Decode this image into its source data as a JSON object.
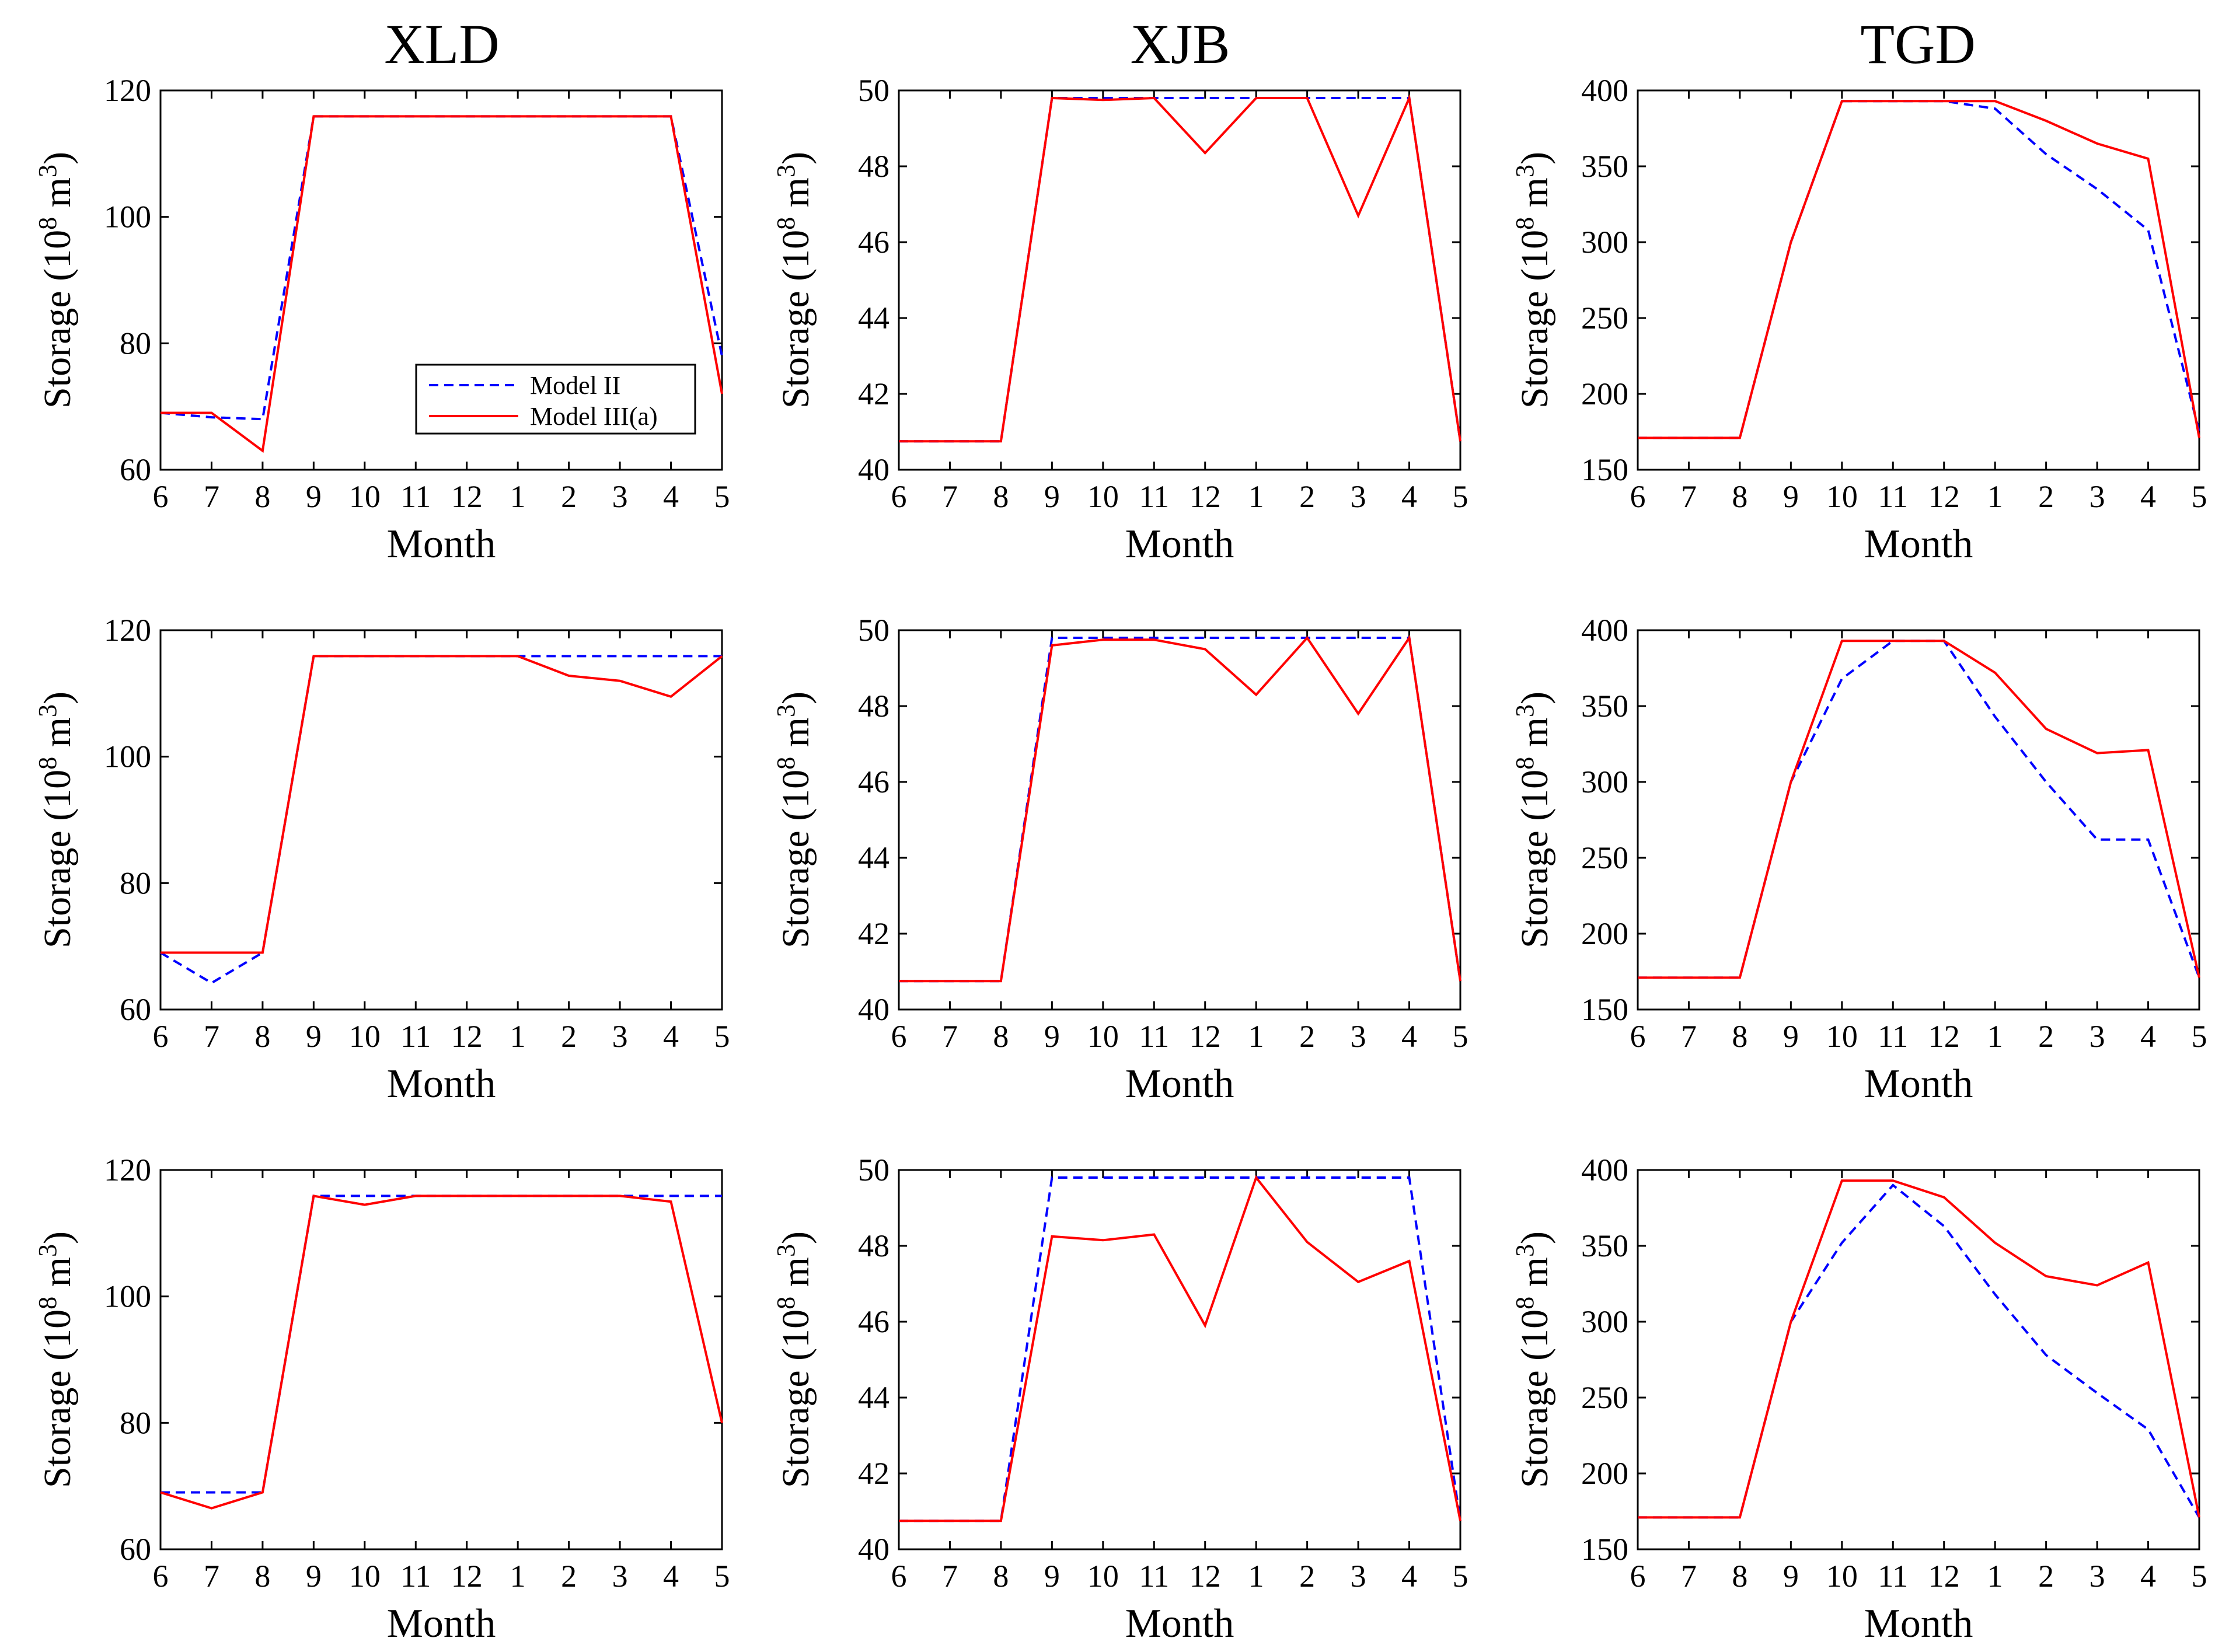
{
  "figure": {
    "column_titles": [
      "XLD",
      "XJB",
      "TGD"
    ],
    "legend": {
      "series_a": "Model II",
      "series_b": "Model III(a)"
    },
    "colors": {
      "model_ii": "#0000ff",
      "model_iii_a": "#ff0000"
    }
  },
  "chart_data": [
    {
      "type": "line",
      "title": "XLD",
      "xlabel": "Month",
      "ylabel": "Storage (10^8 m^3)",
      "categories": [
        "6",
        "7",
        "8",
        "9",
        "10",
        "11",
        "12",
        "1",
        "2",
        "3",
        "4",
        "5"
      ],
      "ylim": [
        60,
        120
      ],
      "yticks": [
        60,
        80,
        100,
        120
      ],
      "series": [
        {
          "name": "Model II",
          "style": "dashed",
          "values": [
            69,
            68.3,
            68,
            115.9,
            115.9,
            115.9,
            115.9,
            115.9,
            115.9,
            115.9,
            115.9,
            78
          ]
        },
        {
          "name": "Model III(a)",
          "style": "solid",
          "values": [
            69,
            69,
            63,
            115.9,
            115.9,
            115.9,
            115.9,
            115.9,
            115.9,
            115.9,
            115.9,
            72
          ]
        }
      ]
    },
    {
      "type": "line",
      "title": "XJB",
      "xlabel": "Month",
      "ylabel": "Storage (10^8 m^3)",
      "categories": [
        "6",
        "7",
        "8",
        "9",
        "10",
        "11",
        "12",
        "1",
        "2",
        "3",
        "4",
        "5"
      ],
      "ylim": [
        40,
        50
      ],
      "yticks": [
        40,
        42,
        44,
        46,
        48,
        50
      ],
      "series": [
        {
          "name": "Model II",
          "style": "dashed",
          "values": [
            40.75,
            40.75,
            40.75,
            49.8,
            49.8,
            49.8,
            49.8,
            49.8,
            49.8,
            49.8,
            49.8,
            40.75
          ]
        },
        {
          "name": "Model III(a)",
          "style": "solid",
          "values": [
            40.75,
            40.75,
            40.75,
            49.8,
            49.75,
            49.8,
            48.35,
            49.8,
            49.8,
            46.7,
            49.8,
            40.75
          ]
        }
      ]
    },
    {
      "type": "line",
      "title": "TGD",
      "xlabel": "Month",
      "ylabel": "Storage (10^8 m^3)",
      "categories": [
        "6",
        "7",
        "8",
        "9",
        "10",
        "11",
        "12",
        "1",
        "2",
        "3",
        "4",
        "5"
      ],
      "ylim": [
        150,
        400
      ],
      "yticks": [
        150,
        200,
        250,
        300,
        350,
        400
      ],
      "series": [
        {
          "name": "Model II",
          "style": "dashed",
          "values": [
            171,
            171,
            171,
            300,
            393,
            393,
            393,
            388,
            358,
            335,
            308,
            175
          ]
        },
        {
          "name": "Model III(a)",
          "style": "solid",
          "values": [
            171,
            171,
            171,
            300,
            393,
            393,
            393,
            393,
            380,
            365,
            355,
            171
          ]
        }
      ]
    },
    {
      "type": "line",
      "title": "",
      "xlabel": "Month",
      "ylabel": "Storage (10^8 m^3)",
      "categories": [
        "6",
        "7",
        "8",
        "9",
        "10",
        "11",
        "12",
        "1",
        "2",
        "3",
        "4",
        "5"
      ],
      "ylim": [
        60,
        120
      ],
      "yticks": [
        60,
        80,
        100,
        120
      ],
      "series": [
        {
          "name": "Model II",
          "style": "dashed",
          "values": [
            69,
            64.2,
            69,
            115.9,
            115.9,
            115.9,
            115.9,
            115.9,
            115.9,
            115.9,
            115.9,
            115.9
          ]
        },
        {
          "name": "Model III(a)",
          "style": "solid",
          "values": [
            69,
            69,
            69,
            115.9,
            115.9,
            115.9,
            115.9,
            115.9,
            112.8,
            112,
            109.5,
            115.9
          ]
        }
      ]
    },
    {
      "type": "line",
      "title": "",
      "xlabel": "Month",
      "ylabel": "Storage (10^8 m^3)",
      "categories": [
        "6",
        "7",
        "8",
        "9",
        "10",
        "11",
        "12",
        "1",
        "2",
        "3",
        "4",
        "5"
      ],
      "ylim": [
        40,
        50
      ],
      "yticks": [
        40,
        42,
        44,
        46,
        48,
        50
      ],
      "series": [
        {
          "name": "Model II",
          "style": "dashed",
          "values": [
            40.75,
            40.75,
            40.75,
            49.8,
            49.8,
            49.8,
            49.8,
            49.8,
            49.8,
            49.8,
            49.8,
            40.75
          ]
        },
        {
          "name": "Model III(a)",
          "style": "solid",
          "values": [
            40.75,
            40.75,
            40.75,
            49.6,
            49.75,
            49.75,
            49.5,
            48.3,
            49.8,
            47.8,
            49.8,
            40.75
          ]
        }
      ]
    },
    {
      "type": "line",
      "title": "",
      "xlabel": "Month",
      "ylabel": "Storage (10^8 m^3)",
      "categories": [
        "6",
        "7",
        "8",
        "9",
        "10",
        "11",
        "12",
        "1",
        "2",
        "3",
        "4",
        "5"
      ],
      "ylim": [
        150,
        400
      ],
      "yticks": [
        150,
        200,
        250,
        300,
        350,
        400
      ],
      "series": [
        {
          "name": "Model II",
          "style": "dashed",
          "values": [
            171,
            171,
            171,
            300,
            368,
            393,
            393,
            343,
            300,
            262,
            262,
            171
          ]
        },
        {
          "name": "Model III(a)",
          "style": "solid",
          "values": [
            171,
            171,
            171,
            300,
            393,
            393,
            393,
            372,
            335,
            319,
            321,
            171
          ]
        }
      ]
    },
    {
      "type": "line",
      "title": "",
      "xlabel": "Month",
      "ylabel": "Storage (10^8 m^3)",
      "categories": [
        "6",
        "7",
        "8",
        "9",
        "10",
        "11",
        "12",
        "1",
        "2",
        "3",
        "4",
        "5"
      ],
      "ylim": [
        60,
        120
      ],
      "yticks": [
        60,
        80,
        100,
        120
      ],
      "series": [
        {
          "name": "Model II",
          "style": "dashed",
          "values": [
            69,
            69,
            69,
            115.9,
            115.9,
            115.9,
            115.9,
            115.9,
            115.9,
            115.9,
            115.9,
            115.9
          ]
        },
        {
          "name": "Model III(a)",
          "style": "solid",
          "values": [
            69,
            66.5,
            69,
            115.9,
            114.5,
            115.9,
            115.9,
            115.9,
            115.9,
            115.9,
            115,
            80
          ]
        }
      ]
    },
    {
      "type": "line",
      "title": "",
      "xlabel": "Month",
      "ylabel": "Storage (10^8 m^3)",
      "categories": [
        "6",
        "7",
        "8",
        "9",
        "10",
        "11",
        "12",
        "1",
        "2",
        "3",
        "4",
        "5"
      ],
      "ylim": [
        40,
        50
      ],
      "yticks": [
        40,
        42,
        44,
        46,
        48,
        50
      ],
      "series": [
        {
          "name": "Model II",
          "style": "dashed",
          "values": [
            40.75,
            40.75,
            40.75,
            49.8,
            49.8,
            49.8,
            49.8,
            49.8,
            49.8,
            49.8,
            49.8,
            40.75
          ]
        },
        {
          "name": "Model III(a)",
          "style": "solid",
          "values": [
            40.75,
            40.75,
            40.75,
            48.25,
            48.15,
            48.3,
            45.9,
            49.8,
            48.1,
            47.05,
            47.6,
            40.75
          ]
        }
      ]
    },
    {
      "type": "line",
      "title": "",
      "xlabel": "Month",
      "ylabel": "Storage (10^8 m^3)",
      "categories": [
        "6",
        "7",
        "8",
        "9",
        "10",
        "11",
        "12",
        "1",
        "2",
        "3",
        "4",
        "5"
      ],
      "ylim": [
        150,
        400
      ],
      "yticks": [
        150,
        200,
        250,
        300,
        350,
        400
      ],
      "series": [
        {
          "name": "Model II",
          "style": "dashed",
          "values": [
            171,
            171,
            171,
            300,
            352,
            390,
            363,
            318,
            278,
            253,
            229,
            171
          ]
        },
        {
          "name": "Model III(a)",
          "style": "solid",
          "values": [
            171,
            171,
            171,
            300,
            393,
            393,
            382,
            352,
            330,
            324,
            339,
            171
          ]
        }
      ]
    }
  ]
}
